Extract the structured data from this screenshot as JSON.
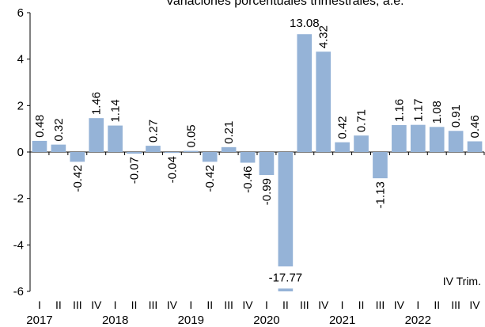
{
  "chart_data": {
    "type": "bar",
    "title": "Variaciones porcentuales trimestrales, a.e.",
    "xlabel": "",
    "ylabel": "",
    "ylim": [
      -6,
      6
    ],
    "yticks": [
      -6,
      -4,
      -2,
      0,
      2,
      4,
      6
    ],
    "ytick_labels": [
      "-6",
      "-4",
      "-2",
      "0",
      "2",
      "4",
      "6"
    ],
    "grid": false,
    "legend": "none",
    "bar_color": "#95b3d7",
    "categories": [
      "I",
      "II",
      "III",
      "IV",
      "I",
      "II",
      "III",
      "IV",
      "I",
      "II",
      "III",
      "IV",
      "I",
      "II",
      "III",
      "IV",
      "I",
      "II",
      "III",
      "IV",
      "I",
      "II",
      "III",
      "IV"
    ],
    "years": [
      "2017",
      "2018",
      "2019",
      "2020",
      "2021",
      "2022"
    ],
    "values": [
      0.48,
      0.32,
      -0.42,
      1.46,
      1.14,
      -0.07,
      0.27,
      -0.04,
      0.05,
      -0.42,
      0.21,
      -0.46,
      -0.99,
      -17.77,
      13.08,
      4.32,
      0.42,
      0.71,
      -1.13,
      1.16,
      1.17,
      1.08,
      0.91,
      0.46
    ],
    "data_labels": [
      "0.48",
      "0.32",
      "-0.42",
      "1.46",
      "1.14",
      "-0.07",
      "0.27",
      "-0.04",
      "0.05",
      "-0.42",
      "0.21",
      "-0.46",
      "-0.99",
      "-17.77",
      "13.08",
      "4.32",
      "0.42",
      "0.71",
      "-1.13",
      "1.16",
      "1.17",
      "1.08",
      "0.91",
      "0.46"
    ],
    "annotation": "IV Trim."
  }
}
